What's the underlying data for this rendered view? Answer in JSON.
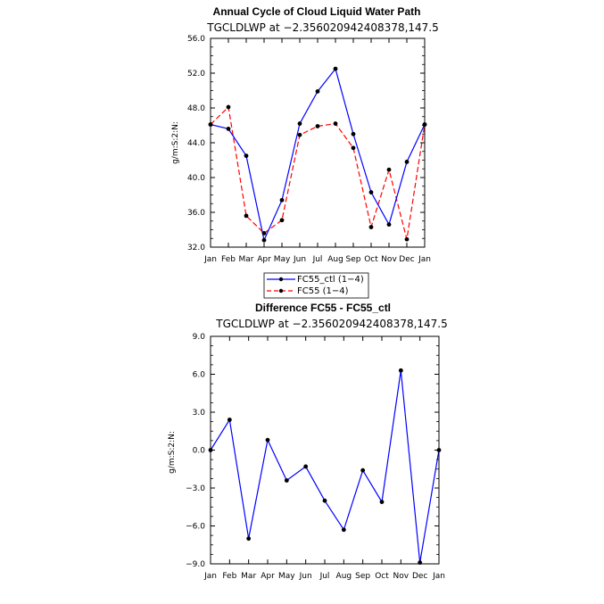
{
  "chart_data": [
    {
      "type": "line",
      "title": "Annual Cycle of Cloud Liquid Water Path",
      "subtitle": "TGCLDLWP at −2.356020942408378,147.5",
      "ylabel": "g/m:S:2:N:",
      "xlabel": "",
      "categories": [
        "Jan",
        "Feb",
        "Mar",
        "Apr",
        "May",
        "Jun",
        "Jul",
        "Aug",
        "Sep",
        "Oct",
        "Nov",
        "Dec",
        "Jan"
      ],
      "ylim": [
        32.0,
        56.0
      ],
      "yticks": [
        32.0,
        36.0,
        40.0,
        44.0,
        48.0,
        52.0,
        56.0
      ],
      "ytick_labels": [
        "32.0",
        "36.0",
        "40.0",
        "44.0",
        "48.0",
        "52.0",
        "56.0"
      ],
      "series": [
        {
          "name": "FC55_ctl (1−4)",
          "color": "#0000ff",
          "dash": "solid",
          "values": [
            46.1,
            45.6,
            42.5,
            32.8,
            37.4,
            46.2,
            49.9,
            52.5,
            45.0,
            38.3,
            34.6,
            41.8,
            46.1
          ]
        },
        {
          "name": "FC55 (1−4)",
          "color": "#ff0000",
          "dash": "dashed",
          "values": [
            46.1,
            48.1,
            35.6,
            33.6,
            35.1,
            44.9,
            45.9,
            46.2,
            43.4,
            34.3,
            40.9,
            32.9,
            46.1
          ]
        }
      ],
      "legend_position": "bottom"
    },
    {
      "type": "line",
      "title": "Difference FC55 - FC55_ctl",
      "subtitle": "TGCLDLWP at −2.356020942408378,147.5",
      "ylabel": "g/m:S:2:N:",
      "xlabel": "",
      "categories": [
        "Jan",
        "Feb",
        "Mar",
        "Apr",
        "May",
        "Jun",
        "Jul",
        "Aug",
        "Sep",
        "Oct",
        "Nov",
        "Dec",
        "Jan"
      ],
      "ylim": [
        -9.0,
        9.0
      ],
      "yticks": [
        -9.0,
        -6.0,
        -3.0,
        0.0,
        3.0,
        6.0,
        9.0
      ],
      "ytick_labels": [
        "−9.0",
        "−6.0",
        "−3.0",
        "0.0",
        "3.0",
        "6.0",
        "9.0"
      ],
      "series": [
        {
          "color": "#0000ff",
          "dash": "solid",
          "values": [
            0.0,
            2.4,
            -7.0,
            0.8,
            -2.4,
            -1.3,
            -4.0,
            -6.3,
            -1.6,
            -4.1,
            6.3,
            -8.9,
            0.0
          ]
        }
      ]
    }
  ]
}
